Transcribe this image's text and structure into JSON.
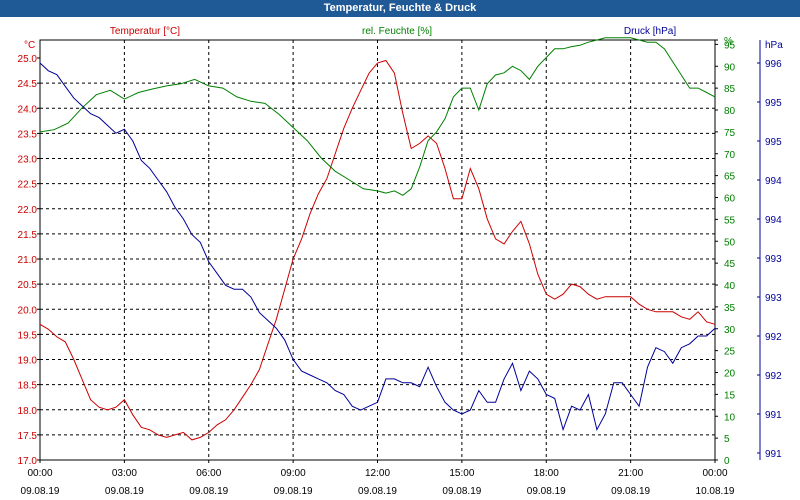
{
  "window": {
    "title": "Temperatur, Feuchte & Druck"
  },
  "chart_data": {
    "type": "line",
    "title": "Temperatur, Feuchte & Druck",
    "colors": {
      "temperature": "#cc0000",
      "humidity": "#008000",
      "pressure": "#000099",
      "title_bar": "#1f5a96",
      "grid": "#000000"
    },
    "x_ticks": [
      {
        "time": "00:00",
        "date": "09.08.19"
      },
      {
        "time": "03:00",
        "date": "09.08.19"
      },
      {
        "time": "06:00",
        "date": "09.08.19"
      },
      {
        "time": "09:00",
        "date": "09.08.19"
      },
      {
        "time": "12:00",
        "date": "09.08.19"
      },
      {
        "time": "15:00",
        "date": "09.08.19"
      },
      {
        "time": "18:00",
        "date": "09.08.19"
      },
      {
        "time": "21:00",
        "date": "09.08.19"
      },
      {
        "time": "00:00",
        "date": "10.08.19"
      }
    ],
    "xlim_hours": [
      0,
      24
    ],
    "grid": true,
    "axes": {
      "temperature": {
        "label": "Temperatur [°C]",
        "unit": "°C",
        "ylim": [
          17.0,
          25.0
        ],
        "ticks": [
          "25.0",
          "24.5",
          "24.0",
          "23.5",
          "23.0",
          "22.5",
          "22.0",
          "21.5",
          "21.0",
          "20.5",
          "20.0",
          "19.5",
          "19.0",
          "18.5",
          "18.0",
          "17.5",
          "17.0"
        ]
      },
      "humidity": {
        "label": "rel. Feuchte [%]",
        "unit": "%",
        "ylim": [
          0,
          96
        ],
        "ticks": [
          "%",
          "95",
          "90",
          "85",
          "80",
          "75",
          "70",
          "65",
          "60",
          "55",
          "50",
          "45",
          "40",
          "35",
          "30",
          "25",
          "20",
          "15",
          "10",
          "5",
          "0"
        ]
      },
      "pressure": {
        "label": "Druck [hPa]",
        "unit": "hPa",
        "ticks": [
          "996",
          "995",
          "995",
          "994",
          "994",
          "993",
          "993",
          "992",
          "992",
          "991",
          "991"
        ]
      }
    },
    "series": [
      {
        "name": "Temperatur [°C]",
        "axis": "temperature",
        "x": [
          0,
          0.3,
          0.6,
          0.9,
          1.2,
          1.5,
          1.8,
          2.1,
          2.4,
          2.7,
          3.0,
          3.3,
          3.6,
          3.9,
          4.2,
          4.5,
          4.8,
          5.1,
          5.4,
          5.7,
          6.0,
          6.3,
          6.6,
          6.9,
          7.2,
          7.5,
          7.8,
          8.1,
          8.4,
          8.7,
          9.0,
          9.3,
          9.6,
          9.9,
          10.2,
          10.5,
          10.8,
          11.1,
          11.4,
          11.7,
          12.0,
          12.3,
          12.6,
          12.9,
          13.2,
          13.5,
          13.8,
          14.1,
          14.4,
          14.7,
          15.0,
          15.3,
          15.6,
          15.9,
          16.2,
          16.5,
          16.8,
          17.1,
          17.4,
          17.7,
          18.0,
          18.3,
          18.6,
          18.9,
          19.2,
          19.5,
          19.8,
          20.1,
          20.4,
          20.7,
          21.0,
          21.3,
          21.6,
          21.9,
          22.2,
          22.5,
          22.8,
          23.1,
          23.4,
          23.7,
          24.0
        ],
        "values": [
          19.7,
          19.6,
          19.45,
          19.35,
          19.0,
          18.6,
          18.2,
          18.05,
          18.0,
          18.05,
          18.2,
          17.9,
          17.65,
          17.6,
          17.5,
          17.45,
          17.5,
          17.55,
          17.4,
          17.45,
          17.55,
          17.7,
          17.8,
          18.0,
          18.25,
          18.5,
          18.8,
          19.3,
          19.8,
          20.4,
          21.0,
          21.4,
          21.9,
          22.3,
          22.6,
          23.1,
          23.6,
          24.0,
          24.35,
          24.7,
          24.9,
          24.95,
          24.7,
          23.9,
          23.2,
          23.3,
          23.45,
          23.3,
          22.8,
          22.2,
          22.2,
          22.8,
          22.4,
          21.8,
          21.4,
          21.3,
          21.55,
          21.75,
          21.3,
          20.7,
          20.3,
          20.2,
          20.3,
          20.5,
          20.45,
          20.3,
          20.2,
          20.25,
          20.25,
          20.25,
          20.25,
          20.1,
          20.0,
          19.95,
          19.95,
          19.95,
          19.85,
          19.8,
          19.95,
          19.75,
          19.7
        ]
      },
      {
        "name": "rel. Feuchte [%]",
        "axis": "humidity",
        "x": [
          0,
          0.5,
          1.0,
          1.5,
          2.0,
          2.5,
          3.0,
          3.5,
          4.0,
          4.5,
          5.0,
          5.5,
          6.0,
          6.5,
          7.0,
          7.5,
          8.0,
          8.5,
          9.0,
          9.5,
          10.0,
          10.5,
          11.0,
          11.5,
          12.0,
          12.3,
          12.6,
          12.9,
          13.2,
          13.5,
          13.8,
          14.1,
          14.4,
          14.7,
          15.0,
          15.3,
          15.6,
          15.9,
          16.2,
          16.5,
          16.8,
          17.1,
          17.4,
          17.7,
          18.0,
          18.3,
          18.6,
          18.9,
          19.2,
          19.5,
          19.8,
          20.1,
          20.4,
          20.7,
          21.0,
          21.3,
          21.6,
          21.9,
          22.2,
          22.5,
          22.8,
          23.1,
          23.4,
          23.7,
          24.0
        ],
        "values": [
          75,
          75.5,
          77,
          80.5,
          83.5,
          84.5,
          82.5,
          84,
          84.8,
          85.5,
          86,
          87,
          85.5,
          85,
          83,
          82,
          81.5,
          79,
          76,
          73,
          69,
          66,
          64,
          62,
          61.5,
          61,
          61.5,
          60.5,
          62,
          67,
          73,
          75,
          78,
          83,
          85,
          85,
          80,
          86,
          88,
          88.5,
          90,
          89,
          87,
          90,
          92,
          94,
          94,
          94.5,
          94.8,
          95.5,
          96,
          96.5,
          96.5,
          96.5,
          96.5,
          96,
          95.5,
          95.5,
          94,
          91,
          88,
          85,
          85,
          84,
          83
        ]
      },
      {
        "name": "Druck [hPa]",
        "axis": "pressure",
        "x": [
          0,
          0.3,
          0.6,
          0.9,
          1.2,
          1.5,
          1.8,
          2.1,
          2.4,
          2.7,
          3.0,
          3.3,
          3.6,
          3.9,
          4.2,
          4.5,
          4.8,
          5.1,
          5.4,
          5.7,
          6.0,
          6.3,
          6.6,
          6.9,
          7.2,
          7.5,
          7.8,
          8.1,
          8.4,
          8.7,
          9.0,
          9.3,
          9.6,
          9.9,
          10.2,
          10.5,
          10.8,
          11.1,
          11.4,
          11.7,
          12.0,
          12.3,
          12.6,
          12.9,
          13.2,
          13.5,
          13.8,
          14.1,
          14.4,
          14.7,
          15.0,
          15.3,
          15.6,
          15.9,
          16.2,
          16.5,
          16.8,
          17.1,
          17.4,
          17.7,
          18.0,
          18.3,
          18.6,
          18.9,
          19.2,
          19.5,
          19.8,
          20.1,
          20.4,
          20.7,
          21.0,
          21.3,
          21.6,
          21.9,
          22.2,
          22.5,
          22.8,
          23.1,
          23.4,
          23.7,
          24.0
        ],
        "values": [
          996.0,
          995.9,
          995.85,
          995.7,
          995.55,
          995.45,
          995.35,
          995.3,
          995.2,
          995.1,
          995.15,
          995.0,
          994.75,
          994.65,
          994.5,
          994.35,
          994.15,
          994.0,
          993.8,
          993.7,
          993.45,
          993.3,
          993.15,
          993.1,
          993.1,
          993.0,
          992.8,
          992.7,
          992.6,
          992.45,
          992.2,
          992.05,
          992.0,
          991.95,
          991.9,
          991.8,
          991.75,
          991.6,
          991.55,
          991.6,
          991.65,
          991.95,
          991.95,
          991.9,
          991.9,
          991.85,
          992.1,
          991.85,
          991.65,
          991.55,
          991.5,
          991.55,
          991.8,
          991.65,
          991.65,
          991.95,
          992.15,
          991.8,
          992.05,
          991.95,
          991.75,
          991.7,
          991.3,
          991.6,
          991.55,
          991.75,
          991.3,
          991.5,
          991.9,
          991.9,
          991.75,
          991.6,
          992.1,
          992.35,
          992.3,
          992.15,
          992.35,
          992.4,
          992.5,
          992.5,
          992.6
        ]
      }
    ]
  }
}
